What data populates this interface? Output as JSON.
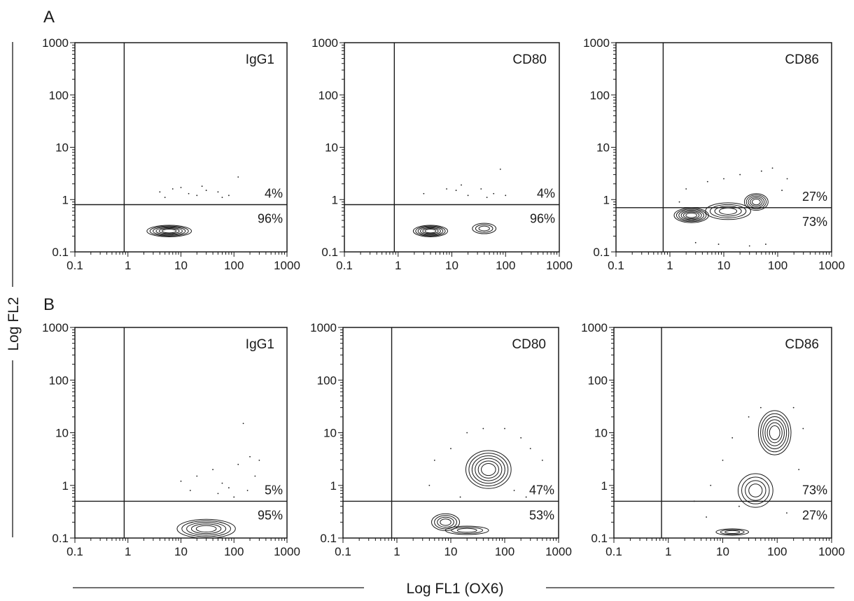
{
  "figure": {
    "y_axis_label": "Log FL2",
    "x_axis_label": "Log FL1 (OX6)",
    "row_labels": [
      "A",
      "B"
    ]
  },
  "chart_data": [
    {
      "type": "scatter",
      "subtype": "contour-density",
      "row": "A",
      "label": "IgG1",
      "xscale": "log",
      "yscale": "log",
      "xlim": [
        0.1,
        1000
      ],
      "ylim": [
        0.1,
        1000
      ],
      "xticks": [
        "0.1",
        "1",
        "10",
        "100",
        "1000"
      ],
      "yticks": [
        "0.1",
        "1",
        "10",
        "100",
        "1000"
      ],
      "gate": {
        "x": 0.85,
        "y": 0.8
      },
      "quadrants": {
        "upper_right": "4%",
        "lower_right": "96%"
      },
      "clusters": [
        {
          "x": 6,
          "y": 0.25,
          "sx": 0.42,
          "sy": 0.11,
          "levels": 6
        }
      ],
      "dots": [
        [
          4,
          1.4
        ],
        [
          7,
          1.6
        ],
        [
          10,
          1.7
        ],
        [
          14,
          1.3
        ],
        [
          20,
          1.2
        ],
        [
          30,
          1.5
        ],
        [
          50,
          1.4
        ],
        [
          80,
          1.2
        ],
        [
          120,
          2.7
        ],
        [
          5,
          1.1
        ],
        [
          25,
          1.8
        ],
        [
          60,
          1.1
        ]
      ]
    },
    {
      "type": "scatter",
      "subtype": "contour-density",
      "row": "A",
      "label": "CD80",
      "xscale": "log",
      "yscale": "log",
      "xlim": [
        0.1,
        1000
      ],
      "ylim": [
        0.1,
        1000
      ],
      "xticks": [
        "0.1",
        "1",
        "10",
        "100",
        "1000"
      ],
      "yticks": [
        "0.1",
        "1",
        "10",
        "100",
        "1000"
      ],
      "gate": {
        "x": 0.85,
        "y": 0.8
      },
      "quadrants": {
        "upper_right": "4%",
        "lower_right": "96%"
      },
      "clusters": [
        {
          "x": 4,
          "y": 0.25,
          "sx": 0.32,
          "sy": 0.11,
          "levels": 6
        },
        {
          "x": 40,
          "y": 0.28,
          "sx": 0.22,
          "sy": 0.1,
          "levels": 3
        }
      ],
      "dots": [
        [
          3,
          1.3
        ],
        [
          8,
          1.6
        ],
        [
          12,
          1.5
        ],
        [
          20,
          1.2
        ],
        [
          35,
          1.6
        ],
        [
          60,
          1.3
        ],
        [
          80,
          3.8
        ],
        [
          15,
          1.9
        ],
        [
          45,
          1.1
        ],
        [
          100,
          1.2
        ]
      ]
    },
    {
      "type": "scatter",
      "subtype": "contour-density",
      "row": "A",
      "label": "CD86",
      "xscale": "log",
      "yscale": "log",
      "xlim": [
        0.1,
        1000
      ],
      "ylim": [
        0.1,
        1000
      ],
      "xticks": [
        "0.1",
        "1",
        "10",
        "100",
        "1000"
      ],
      "yticks": [
        "0.1",
        "1",
        "10",
        "100",
        "1000"
      ],
      "gate": {
        "x": 0.75,
        "y": 0.7
      },
      "quadrants": {
        "upper_right": "27%",
        "lower_right": "73%"
      },
      "clusters": [
        {
          "x": 2.5,
          "y": 0.5,
          "sx": 0.32,
          "sy": 0.14,
          "levels": 6
        },
        {
          "x": 12,
          "y": 0.6,
          "sx": 0.42,
          "sy": 0.16,
          "levels": 4
        },
        {
          "x": 40,
          "y": 0.9,
          "sx": 0.22,
          "sy": 0.16,
          "levels": 5
        }
      ],
      "dots": [
        [
          2,
          1.6
        ],
        [
          5,
          2.2
        ],
        [
          10,
          2.5
        ],
        [
          20,
          3
        ],
        [
          50,
          3.5
        ],
        [
          80,
          4
        ],
        [
          150,
          2.5
        ],
        [
          3,
          0.15
        ],
        [
          8,
          0.14
        ],
        [
          30,
          0.13
        ],
        [
          60,
          0.14
        ],
        [
          120,
          1.5
        ],
        [
          1.5,
          0.9
        ]
      ]
    },
    {
      "type": "scatter",
      "subtype": "contour-density",
      "row": "B",
      "label": "IgG1",
      "xscale": "log",
      "yscale": "log",
      "xlim": [
        0.1,
        1000
      ],
      "ylim": [
        0.1,
        1000
      ],
      "xticks": [
        "0.1",
        "1",
        "10",
        "100",
        "1000"
      ],
      "yticks": [
        "0.1",
        "1",
        "10",
        "100",
        "1000"
      ],
      "gate": {
        "x": 0.85,
        "y": 0.5
      },
      "quadrants": {
        "upper_right": "5%",
        "lower_right": "95%"
      },
      "clusters": [
        {
          "x": 30,
          "y": 0.15,
          "sx": 0.55,
          "sy": 0.18,
          "levels": 5
        }
      ],
      "dots": [
        [
          10,
          1.2
        ],
        [
          20,
          1.5
        ],
        [
          40,
          2
        ],
        [
          60,
          1.1
        ],
        [
          80,
          0.9
        ],
        [
          120,
          2.5
        ],
        [
          150,
          15
        ],
        [
          200,
          3.5
        ],
        [
          250,
          1.5
        ],
        [
          300,
          3
        ],
        [
          15,
          0.8
        ],
        [
          50,
          0.7
        ],
        [
          100,
          0.6
        ],
        [
          180,
          0.8
        ]
      ]
    },
    {
      "type": "scatter",
      "subtype": "contour-density",
      "row": "B",
      "label": "CD80",
      "xscale": "log",
      "yscale": "log",
      "xlim": [
        0.1,
        1000
      ],
      "ylim": [
        0.1,
        1000
      ],
      "xticks": [
        "0.1",
        "1",
        "10",
        "100",
        "1000"
      ],
      "yticks": [
        "0.1",
        "1",
        "10",
        "100",
        "1000"
      ],
      "gate": {
        "x": 0.8,
        "y": 0.5
      },
      "quadrants": {
        "upper_right": "47%",
        "lower_right": "53%"
      },
      "clusters": [
        {
          "x": 50,
          "y": 2,
          "sx": 0.42,
          "sy": 0.36,
          "levels": 6
        },
        {
          "x": 8,
          "y": 0.2,
          "sx": 0.26,
          "sy": 0.16,
          "levels": 4
        },
        {
          "x": 20,
          "y": 0.14,
          "sx": 0.4,
          "sy": 0.08,
          "levels": 3
        }
      ],
      "dots": [
        [
          5,
          3
        ],
        [
          10,
          5
        ],
        [
          20,
          10
        ],
        [
          40,
          12
        ],
        [
          100,
          12
        ],
        [
          200,
          8
        ],
        [
          300,
          5
        ],
        [
          500,
          3
        ],
        [
          4,
          1
        ],
        [
          150,
          0.8
        ],
        [
          250,
          0.6
        ],
        [
          15,
          0.6
        ]
      ]
    },
    {
      "type": "scatter",
      "subtype": "contour-density",
      "row": "B",
      "label": "CD86",
      "xscale": "log",
      "yscale": "log",
      "xlim": [
        0.1,
        1000
      ],
      "ylim": [
        0.1,
        1000
      ],
      "xticks": [
        "0.1",
        "1",
        "10",
        "100",
        "1000"
      ],
      "yticks": [
        "0.1",
        "1",
        "10",
        "100",
        "1000"
      ],
      "gate": {
        "x": 0.75,
        "y": 0.5
      },
      "quadrants": {
        "upper_right": "73%",
        "lower_right": "27%"
      },
      "clusters": [
        {
          "x": 90,
          "y": 10,
          "sx": 0.3,
          "sy": 0.42,
          "levels": 6
        },
        {
          "x": 40,
          "y": 0.8,
          "sx": 0.32,
          "sy": 0.32,
          "levels": 4
        },
        {
          "x": 15,
          "y": 0.13,
          "sx": 0.3,
          "sy": 0.06,
          "levels": 3
        }
      ],
      "dots": [
        [
          10,
          3
        ],
        [
          15,
          8
        ],
        [
          30,
          20
        ],
        [
          50,
          30
        ],
        [
          200,
          30
        ],
        [
          300,
          12
        ],
        [
          3,
          0.5
        ],
        [
          6,
          1
        ],
        [
          20,
          0.4
        ],
        [
          250,
          2
        ],
        [
          150,
          0.3
        ],
        [
          5,
          0.25
        ]
      ]
    }
  ]
}
